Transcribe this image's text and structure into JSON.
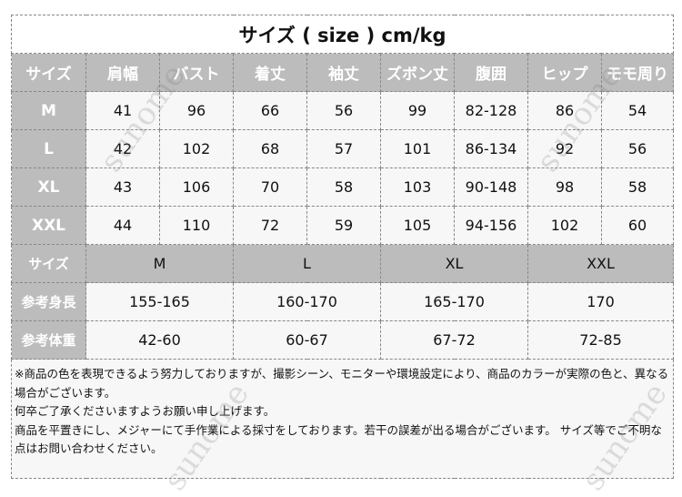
{
  "title": "サイズ ( size ) cm/kg",
  "measure_table": {
    "headers": [
      "サイズ",
      "肩幅",
      "バスト",
      "着丈",
      "袖丈",
      "ズボン丈",
      "腹囲",
      "ヒップ",
      "モモ周り"
    ],
    "rows": [
      [
        "M",
        "41",
        "96",
        "66",
        "56",
        "99",
        "82-128",
        "86",
        "54"
      ],
      [
        "L",
        "42",
        "102",
        "68",
        "57",
        "101",
        "86-134",
        "92",
        "56"
      ],
      [
        "XL",
        "43",
        "106",
        "70",
        "58",
        "103",
        "90-148",
        "98",
        "58"
      ],
      [
        "XXL",
        "44",
        "110",
        "72",
        "59",
        "105",
        "94-156",
        "102",
        "60"
      ]
    ]
  },
  "fit_table": {
    "rows": [
      [
        "サイズ",
        "M",
        "L",
        "XL",
        "XXL"
      ],
      [
        "参考身長",
        "155-165",
        "160-170",
        "165-170",
        "170"
      ],
      [
        "参考体重",
        "42-60",
        "60-67",
        "67-72",
        "72-85"
      ]
    ]
  },
  "notes": [
    "※商品の色を表現できるよう努力しておりますが、撮影シーン、モニターや環境設定により、商品のカラーが実際の色と、異なる場合がございます。",
    "何卒ご了承くださいますようお願い申し上げます。",
    "商品を平置きにし、メジャーにて手作業による採寸をしております。若干の誤差が出る場合がございます。 サイズ等でご不明な点はお問い合わせください。"
  ],
  "watermark": "sunome",
  "colors": {
    "header_bg": "#bcbcbc",
    "cell_bg": "#f7f7f7",
    "border": "#888888"
  }
}
